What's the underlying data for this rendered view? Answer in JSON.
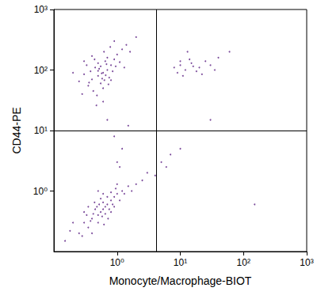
{
  "chart_data": {
    "type": "scatter",
    "x_label": "Monocyte/Macrophage-BIOT",
    "y_label": "CD44-PE",
    "log": true,
    "color": "#5a1e82",
    "marker": "dot",
    "xlim": [
      0.1,
      1000
    ],
    "ylim": [
      0.1,
      1000
    ],
    "xticks": [
      {
        "value": 1,
        "label": "10⁰"
      },
      {
        "value": 10,
        "label": "10¹"
      },
      {
        "value": 100,
        "label": "10²"
      },
      {
        "value": 1000,
        "label": "10³"
      }
    ],
    "yticks": [
      {
        "value": 1,
        "label": "10⁰"
      },
      {
        "value": 10,
        "label": "10¹"
      },
      {
        "value": 100,
        "label": "10²"
      },
      {
        "value": 1000,
        "label": "10³"
      }
    ],
    "quadrant_x": 4.2,
    "quadrant_y": 10,
    "x": [
      0.6,
      0.5,
      0.7,
      0.4,
      0.8,
      0.55,
      0.65,
      0.45,
      0.9,
      0.35,
      0.75,
      0.5,
      0.6,
      1.0,
      0.3,
      0.85,
      0.62,
      0.42,
      1.2,
      0.25,
      0.7,
      0.52,
      0.95,
      0.38,
      0.58,
      1.4,
      0.48,
      0.68,
      0.33,
      0.8,
      0.57,
      0.44,
      1.1,
      0.28,
      0.9,
      0.6,
      0.2,
      1.6,
      0.73,
      0.4,
      0.5,
      0.66,
      0.36,
      1.3,
      0.78,
      0.47,
      0.55,
      0.63,
      0.3,
      2.0,
      0.6,
      0.5,
      0.7,
      0.4,
      0.8,
      0.55,
      0.9,
      0.3,
      0.65,
      1.0,
      0.45,
      0.35,
      0.75,
      1.2,
      0.25,
      0.6,
      0.5,
      0.85,
      0.42,
      1.5,
      0.2,
      0.7,
      0.58,
      0.3,
      1.1,
      0.48,
      0.95,
      0.38,
      0.65,
      0.8,
      0.52,
      0.28,
      1.3,
      0.62,
      0.44,
      0.18,
      0.9,
      0.55,
      2.0,
      0.33,
      0.72,
      1.7,
      0.4,
      0.6,
      0.15,
      2.5,
      0.5,
      0.35,
      0.8,
      1.0,
      10,
      12,
      15,
      9,
      20,
      14,
      25,
      11,
      18,
      30,
      13,
      60,
      8,
      22,
      16,
      40,
      35,
      10,
      1.0,
      1.2,
      0.9,
      1.1,
      3,
      5,
      7,
      4,
      10,
      6,
      1.5,
      0.7,
      30,
      150
    ],
    "values": [
      90,
      80,
      100,
      70,
      120,
      60,
      140,
      110,
      150,
      55,
      75,
      130,
      50,
      180,
      85,
      95,
      200,
      45,
      220,
      65,
      160,
      105,
      115,
      95,
      72,
      260,
      38,
      125,
      120,
      68,
      88,
      150,
      135,
      40,
      300,
      30,
      90,
      200,
      58,
      170,
      97,
      82,
      62,
      110,
      240,
      26,
      115,
      68,
      140,
      350,
      0.5,
      0.4,
      0.6,
      0.35,
      0.7,
      0.45,
      0.8,
      0.3,
      0.55,
      0.9,
      0.5,
      0.25,
      0.5,
      1.0,
      0.2,
      0.65,
      0.3,
      0.6,
      0.42,
      1.2,
      0.3,
      0.8,
      0.38,
      0.45,
      0.7,
      0.55,
      1.1,
      0.32,
      0.42,
      0.95,
      0.6,
      0.18,
      0.9,
      0.28,
      0.65,
      0.22,
      0.55,
      0.75,
      1.3,
      0.4,
      0.35,
      1.0,
      0.2,
      0.9,
      0.15,
      1.5,
      1.0,
      0.55,
      0.45,
      1.3,
      120,
      100,
      130,
      90,
      110,
      150,
      140,
      80,
      95,
      120,
      200,
      200,
      110,
      85,
      115,
      160,
      100,
      140,
      3,
      5,
      8,
      2.5,
      2,
      3,
      4,
      1.8,
      5,
      2.5,
      12,
      15,
      15,
      0.6
    ]
  }
}
